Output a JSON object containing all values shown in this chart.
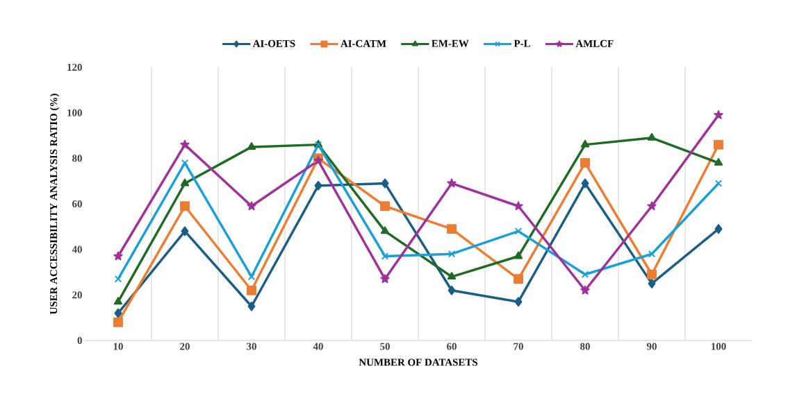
{
  "chart_data": {
    "type": "line",
    "xlabel": "NUMBER OF DATASETS",
    "ylabel": "USER ACCESSIBILITY ANALYSIS RATIO (%)",
    "categories": [
      "10",
      "20",
      "30",
      "40",
      "50",
      "60",
      "70",
      "80",
      "90",
      "100"
    ],
    "ylim": [
      0,
      120
    ],
    "yticks": [
      0,
      20,
      40,
      60,
      80,
      100,
      120
    ],
    "grid": "x",
    "legend": "top",
    "line_style": "solid",
    "series": [
      {
        "name": "AI-OETS",
        "color": "#1a5e86",
        "marker": "diamond",
        "values": [
          12,
          48,
          15,
          68,
          69,
          22,
          17,
          69,
          25,
          49
        ]
      },
      {
        "name": "AI-CATM",
        "color": "#ed7d31",
        "marker": "square",
        "values": [
          8,
          59,
          22,
          80,
          59,
          49,
          27,
          78,
          29,
          86
        ]
      },
      {
        "name": "EM-EW",
        "color": "#1e6b24",
        "marker": "triangle",
        "values": [
          17,
          69,
          85,
          86,
          48,
          28,
          37,
          86,
          89,
          78
        ]
      },
      {
        "name": "P-L",
        "color": "#18a0d8",
        "marker": "cross",
        "values": [
          27,
          78,
          28,
          86,
          37,
          38,
          48,
          29,
          38,
          69
        ]
      },
      {
        "name": "AMLCF",
        "color": "#a0309a",
        "marker": "star",
        "values": [
          37,
          86,
          59,
          79,
          27,
          69,
          59,
          22,
          59,
          99
        ]
      }
    ]
  }
}
